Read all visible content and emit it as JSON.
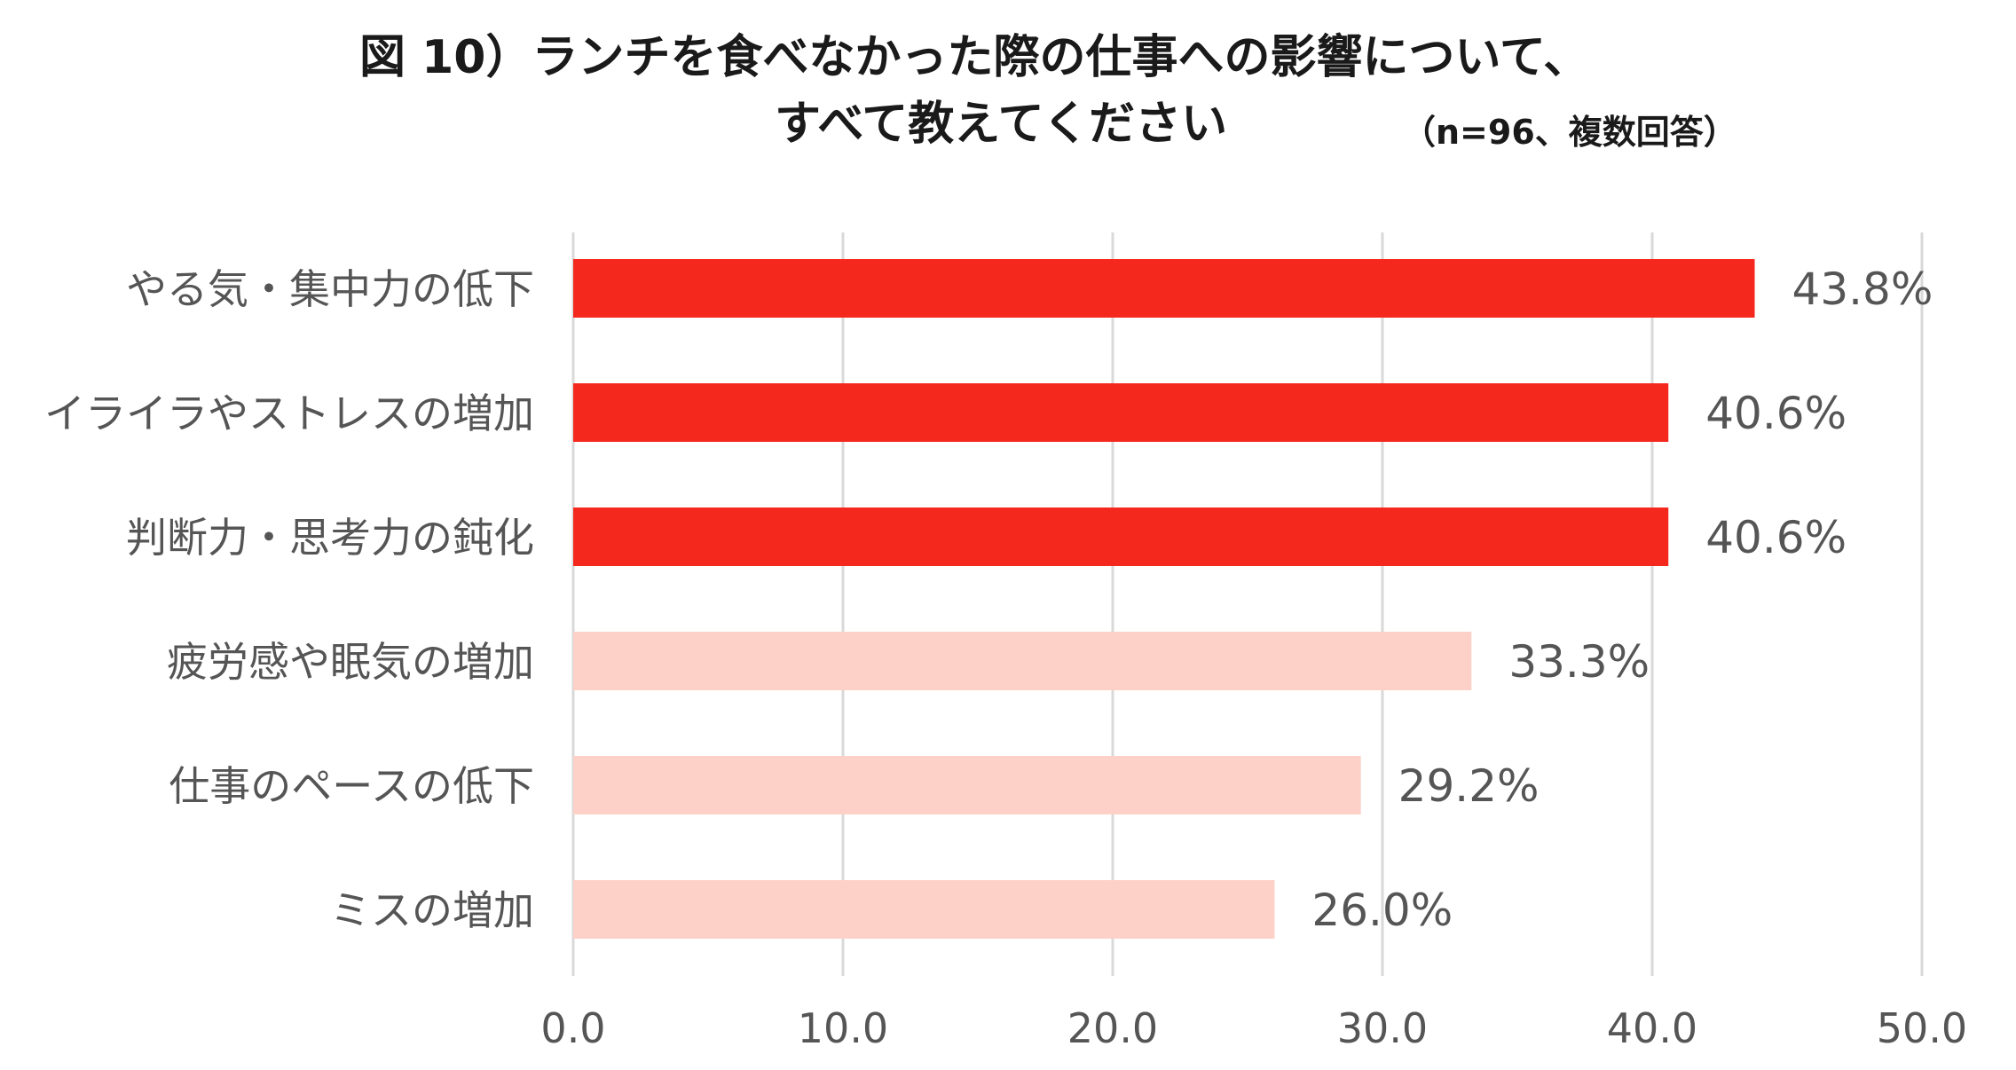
{
  "chart_data": {
    "type": "bar",
    "orientation": "horizontal",
    "title_line1": "図 10）ランチを食べなかった際の仕事への影響について、",
    "title_line2": "すべて教えてください",
    "note": "（n=96、複数回答）",
    "categories": [
      "やる気・集中力の低下",
      "イライラやストレスの増加",
      "判断力・思考力の鈍化",
      "疲労感や眠気の増加",
      "仕事のペースの低下",
      "ミスの増加"
    ],
    "values": [
      43.8,
      40.6,
      40.6,
      33.3,
      29.2,
      26.0
    ],
    "value_labels": [
      "43.8%",
      "40.6%",
      "40.6%",
      "33.3%",
      "29.2%",
      "26.0%"
    ],
    "highlight": [
      true,
      true,
      true,
      false,
      false,
      false
    ],
    "xlim": [
      0,
      50
    ],
    "xticks": [
      0,
      10,
      20,
      30,
      40,
      50
    ],
    "xtick_labels": [
      "0.0",
      "10.0",
      "20.0",
      "30.0",
      "40.0",
      "50.0"
    ],
    "grid": true,
    "colors": {
      "highlight": "#f5281e",
      "normal": "#fdd1c8",
      "grid": "#d9d9d9",
      "text": "#555555",
      "title": "#1a1a1a"
    }
  }
}
